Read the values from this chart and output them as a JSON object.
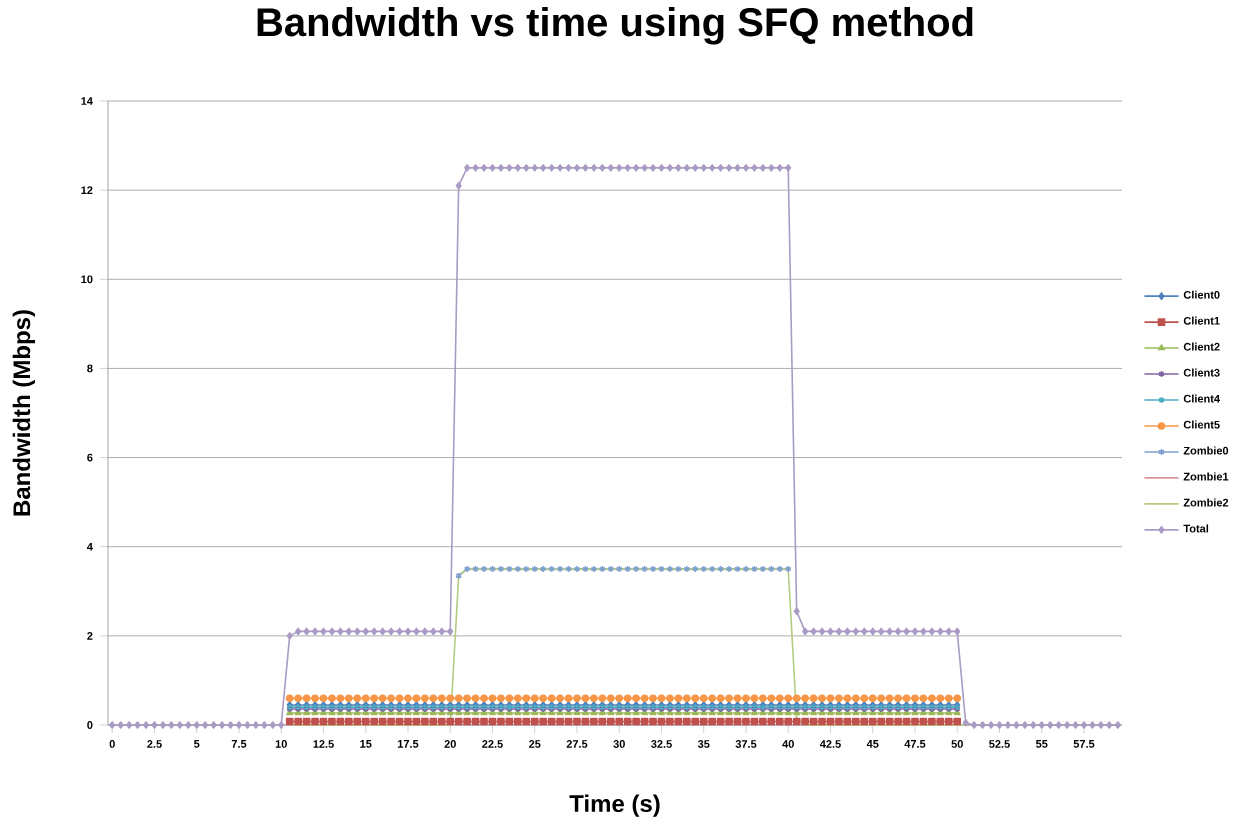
{
  "chart_data": {
    "type": "line",
    "title": "Bandwidth vs time using SFQ method",
    "xlabel": "Time (s)",
    "ylabel": "Bandwidth (Mbps)",
    "categories": [
      "0",
      null,
      null,
      null,
      null,
      "2.5",
      null,
      null,
      null,
      null,
      "5",
      null,
      null,
      null,
      null,
      "7.5",
      null,
      null,
      null,
      null,
      "10",
      null,
      null,
      null,
      null,
      "12.5",
      null,
      null,
      null,
      null,
      "15",
      null,
      null,
      null,
      null,
      "17.5",
      null,
      null,
      null,
      null,
      "20",
      null,
      null,
      null,
      null,
      "22.5",
      null,
      null,
      null,
      null,
      "25",
      null,
      null,
      null,
      null,
      "27.5",
      null,
      null,
      null,
      null,
      "30",
      null,
      null,
      null,
      null,
      "32.5",
      null,
      null,
      null,
      null,
      "35",
      null,
      null,
      null,
      null,
      "37.5",
      null,
      null,
      null,
      null,
      "40",
      null,
      null,
      null,
      null,
      "42.5",
      null,
      null,
      null,
      null,
      "45",
      null,
      null,
      null,
      null,
      "47.5",
      null,
      null,
      null,
      null,
      "50",
      null,
      null,
      null,
      null,
      "52.5",
      null,
      null,
      null,
      null,
      "55",
      null,
      null,
      null,
      null,
      "57.5",
      null,
      null,
      null,
      null
    ],
    "ylim": [
      0,
      14
    ],
    "yticks": [
      0,
      2,
      4,
      6,
      8,
      10,
      12,
      14
    ],
    "grid": "y",
    "legend": "right",
    "line_style": "solid",
    "series": [
      {
        "name": "Client0",
        "color": "#4f81bd",
        "marker": "diamond",
        "values": [
          null,
          null,
          null,
          null,
          null,
          null,
          null,
          null,
          null,
          null,
          null,
          null,
          null,
          null,
          null,
          null,
          null,
          null,
          null,
          null,
          null,
          0.45,
          0.45,
          0.45,
          0.45,
          0.45,
          0.45,
          0.45,
          0.45,
          0.45,
          0.45,
          0.45,
          0.45,
          0.45,
          0.45,
          0.45,
          0.45,
          0.45,
          0.45,
          0.45,
          0.45,
          0.45,
          0.45,
          0.45,
          0.45,
          0.45,
          0.45,
          0.45,
          0.45,
          0.45,
          0.45,
          0.45,
          0.45,
          0.45,
          0.45,
          0.45,
          0.45,
          0.45,
          0.45,
          0.45,
          0.45,
          0.45,
          0.45,
          0.45,
          0.45,
          0.45,
          0.45,
          0.45,
          0.45,
          0.45,
          0.45,
          0.45,
          0.45,
          0.45,
          0.45,
          0.45,
          0.45,
          0.45,
          0.45,
          0.45,
          0.45,
          0.45,
          0.45,
          0.45,
          0.45,
          0.45,
          0.45,
          0.45,
          0.45,
          0.45,
          0.45,
          0.45,
          0.45,
          0.45,
          0.45,
          0.45,
          0.45,
          0.45,
          0.45,
          0.45,
          0.45,
          null,
          null,
          null,
          null,
          null,
          null,
          null,
          null,
          null,
          null,
          null,
          null,
          null,
          null,
          null,
          null,
          null,
          null,
          null
        ]
      },
      {
        "name": "Client1",
        "color": "#c0504d",
        "marker": "square",
        "values": [
          null,
          null,
          null,
          null,
          null,
          null,
          null,
          null,
          null,
          null,
          null,
          null,
          null,
          null,
          null,
          null,
          null,
          null,
          null,
          null,
          null,
          0.08,
          0.08,
          0.08,
          0.08,
          0.08,
          0.08,
          0.08,
          0.08,
          0.08,
          0.08,
          0.08,
          0.08,
          0.08,
          0.08,
          0.08,
          0.08,
          0.08,
          0.08,
          0.08,
          0.08,
          0.08,
          0.08,
          0.08,
          0.08,
          0.08,
          0.08,
          0.08,
          0.08,
          0.08,
          0.08,
          0.08,
          0.08,
          0.08,
          0.08,
          0.08,
          0.08,
          0.08,
          0.08,
          0.08,
          0.08,
          0.08,
          0.08,
          0.08,
          0.08,
          0.08,
          0.08,
          0.08,
          0.08,
          0.08,
          0.08,
          0.08,
          0.08,
          0.08,
          0.08,
          0.08,
          0.08,
          0.08,
          0.08,
          0.08,
          0.08,
          0.08,
          0.08,
          0.08,
          0.08,
          0.08,
          0.08,
          0.08,
          0.08,
          0.08,
          0.08,
          0.08,
          0.08,
          0.08,
          0.08,
          0.08,
          0.08,
          0.08,
          0.08,
          0.08,
          0.08,
          null,
          null,
          null,
          null,
          null,
          null,
          null,
          null,
          null,
          null,
          null,
          null,
          null,
          null,
          null,
          null,
          null,
          null,
          null
        ]
      },
      {
        "name": "Client2",
        "color": "#9bbb59",
        "marker": "triangle",
        "values": [
          null,
          null,
          null,
          null,
          null,
          null,
          null,
          null,
          null,
          null,
          null,
          null,
          null,
          null,
          null,
          null,
          null,
          null,
          null,
          null,
          null,
          0.27,
          0.27,
          0.27,
          0.27,
          0.27,
          0.27,
          0.27,
          0.27,
          0.27,
          0.27,
          0.27,
          0.27,
          0.27,
          0.27,
          0.27,
          0.27,
          0.27,
          0.27,
          0.27,
          0.27,
          0.27,
          0.27,
          0.27,
          0.27,
          0.27,
          0.27,
          0.27,
          0.27,
          0.27,
          0.27,
          0.27,
          0.27,
          0.27,
          0.27,
          0.27,
          0.27,
          0.27,
          0.27,
          0.27,
          0.27,
          0.27,
          0.27,
          0.27,
          0.27,
          0.27,
          0.27,
          0.27,
          0.27,
          0.27,
          0.27,
          0.27,
          0.27,
          0.27,
          0.27,
          0.27,
          0.27,
          0.27,
          0.27,
          0.27,
          0.27,
          0.27,
          0.27,
          0.27,
          0.27,
          0.27,
          0.27,
          0.27,
          0.27,
          0.27,
          0.27,
          0.27,
          0.27,
          0.27,
          0.27,
          0.27,
          0.27,
          0.27,
          0.27,
          0.27,
          0.27,
          null,
          null,
          null,
          null,
          null,
          null,
          null,
          null,
          null,
          null,
          null,
          null,
          null,
          null,
          null,
          null,
          null,
          null,
          null
        ]
      },
      {
        "name": "Client3",
        "color": "#8064a2",
        "marker": "cross",
        "values": [
          null,
          null,
          null,
          null,
          null,
          null,
          null,
          null,
          null,
          null,
          null,
          null,
          null,
          null,
          null,
          null,
          null,
          null,
          null,
          null,
          null,
          0.36,
          0.36,
          0.36,
          0.36,
          0.36,
          0.36,
          0.36,
          0.36,
          0.36,
          0.36,
          0.36,
          0.36,
          0.36,
          0.36,
          0.36,
          0.36,
          0.36,
          0.36,
          0.36,
          0.36,
          0.36,
          0.36,
          0.36,
          0.36,
          0.36,
          0.36,
          0.36,
          0.36,
          0.36,
          0.36,
          0.36,
          0.36,
          0.36,
          0.36,
          0.36,
          0.36,
          0.36,
          0.36,
          0.36,
          0.36,
          0.36,
          0.36,
          0.36,
          0.36,
          0.36,
          0.36,
          0.36,
          0.36,
          0.36,
          0.36,
          0.36,
          0.36,
          0.36,
          0.36,
          0.36,
          0.36,
          0.36,
          0.36,
          0.36,
          0.36,
          0.36,
          0.36,
          0.36,
          0.36,
          0.36,
          0.36,
          0.36,
          0.36,
          0.36,
          0.36,
          0.36,
          0.36,
          0.36,
          0.36,
          0.36,
          0.36,
          0.36,
          0.36,
          0.36,
          0.36,
          null,
          null,
          null,
          null,
          null,
          null,
          null,
          null,
          null,
          null,
          null,
          null,
          null,
          null,
          null,
          null,
          null,
          null,
          null
        ]
      },
      {
        "name": "Client4",
        "color": "#4bacc6",
        "marker": "cross",
        "values": [
          null,
          null,
          null,
          null,
          null,
          null,
          null,
          null,
          null,
          null,
          null,
          null,
          null,
          null,
          null,
          null,
          null,
          null,
          null,
          null,
          null,
          0.4,
          0.4,
          0.4,
          0.4,
          0.4,
          0.4,
          0.4,
          0.4,
          0.4,
          0.4,
          0.4,
          0.4,
          0.4,
          0.4,
          0.4,
          0.4,
          0.4,
          0.4,
          0.4,
          0.4,
          0.4,
          0.4,
          0.4,
          0.4,
          0.4,
          0.4,
          0.4,
          0.4,
          0.4,
          0.4,
          0.4,
          0.4,
          0.4,
          0.4,
          0.4,
          0.4,
          0.4,
          0.4,
          0.4,
          0.4,
          0.4,
          0.4,
          0.4,
          0.4,
          0.4,
          0.4,
          0.4,
          0.4,
          0.4,
          0.4,
          0.4,
          0.4,
          0.4,
          0.4,
          0.4,
          0.4,
          0.4,
          0.4,
          0.4,
          0.4,
          0.4,
          0.4,
          0.4,
          0.4,
          0.4,
          0.4,
          0.4,
          0.4,
          0.4,
          0.4,
          0.4,
          0.4,
          0.4,
          0.4,
          0.4,
          0.4,
          0.4,
          0.4,
          0.4,
          0.4,
          null,
          null,
          null,
          null,
          null,
          null,
          null,
          null,
          null,
          null,
          null,
          null,
          null,
          null,
          null,
          null,
          null,
          null,
          null
        ]
      },
      {
        "name": "Client5",
        "color": "#f79646",
        "marker": "circle",
        "values": [
          null,
          null,
          null,
          null,
          null,
          null,
          null,
          null,
          null,
          null,
          null,
          null,
          null,
          null,
          null,
          null,
          null,
          null,
          null,
          null,
          null,
          0.6,
          0.6,
          0.6,
          0.6,
          0.6,
          0.6,
          0.6,
          0.6,
          0.6,
          0.6,
          0.6,
          0.6,
          0.6,
          0.6,
          0.6,
          0.6,
          0.6,
          0.6,
          0.6,
          0.6,
          0.6,
          0.6,
          0.6,
          0.6,
          0.6,
          0.6,
          0.6,
          0.6,
          0.6,
          0.6,
          0.6,
          0.6,
          0.6,
          0.6,
          0.6,
          0.6,
          0.6,
          0.6,
          0.6,
          0.6,
          0.6,
          0.6,
          0.6,
          0.6,
          0.6,
          0.6,
          0.6,
          0.6,
          0.6,
          0.6,
          0.6,
          0.6,
          0.6,
          0.6,
          0.6,
          0.6,
          0.6,
          0.6,
          0.6,
          0.6,
          0.6,
          0.6,
          0.6,
          0.6,
          0.6,
          0.6,
          0.6,
          0.6,
          0.6,
          0.6,
          0.6,
          0.6,
          0.6,
          0.6,
          0.6,
          0.6,
          0.6,
          0.6,
          0.6,
          0.6,
          null,
          null,
          null,
          null,
          null,
          null,
          null,
          null,
          null,
          null,
          null,
          null,
          null,
          null,
          null,
          null,
          null,
          null,
          null
        ]
      },
      {
        "name": "Zombie0",
        "color": "#7f9fcf",
        "marker": "cross",
        "values": [
          null,
          null,
          null,
          null,
          null,
          null,
          null,
          null,
          null,
          null,
          null,
          null,
          null,
          null,
          null,
          null,
          null,
          null,
          null,
          null,
          null,
          null,
          null,
          null,
          null,
          null,
          null,
          null,
          null,
          null,
          null,
          null,
          null,
          null,
          null,
          null,
          null,
          null,
          null,
          null,
          null,
          3.35,
          3.5,
          3.5,
          3.5,
          3.5,
          3.5,
          3.5,
          3.5,
          3.5,
          3.5,
          3.5,
          3.5,
          3.5,
          3.5,
          3.5,
          3.5,
          3.5,
          3.5,
          3.5,
          3.5,
          3.5,
          3.5,
          3.5,
          3.5,
          3.5,
          3.5,
          3.5,
          3.5,
          3.5,
          3.5,
          3.5,
          3.5,
          3.5,
          3.5,
          3.5,
          3.5,
          3.5,
          3.5,
          3.5,
          3.5,
          null,
          null,
          null,
          null,
          null,
          null,
          null,
          null,
          null,
          null,
          null,
          null,
          null,
          null,
          null,
          null,
          null,
          null,
          null,
          null,
          null,
          null,
          null,
          null,
          null,
          null,
          null,
          null,
          null,
          null,
          null,
          null,
          null,
          null,
          null,
          null,
          null,
          null,
          null
        ]
      },
      {
        "name": "Zombie1",
        "color": "#d99694",
        "values": [
          null,
          null,
          null,
          null,
          null,
          null,
          null,
          null,
          null,
          null,
          null,
          null,
          null,
          null,
          null,
          null,
          null,
          null,
          null,
          null,
          null,
          null,
          null,
          null,
          null,
          null,
          null,
          null,
          null,
          null,
          null,
          null,
          null,
          null,
          null,
          null,
          null,
          null,
          null,
          null,
          null,
          null,
          null,
          null,
          null,
          null,
          null,
          null,
          null,
          null,
          null,
          null,
          null,
          null,
          null,
          null,
          null,
          null,
          null,
          null,
          null,
          null,
          null,
          null,
          null,
          null,
          null,
          null,
          null,
          null,
          null,
          null,
          null,
          null,
          null,
          null,
          null,
          null,
          null,
          null,
          null,
          null,
          null,
          null,
          null,
          null,
          null,
          null,
          null,
          null,
          null,
          null,
          null,
          null,
          null,
          null,
          null,
          null,
          null,
          null,
          null,
          null,
          null,
          null,
          null,
          null,
          null,
          null,
          null,
          null,
          null,
          null,
          null,
          null,
          null,
          null,
          null,
          null,
          null,
          null
        ]
      },
      {
        "name": "Zombie2",
        "color": "#b3cc82",
        "values": [
          null,
          null,
          null,
          null,
          null,
          null,
          null,
          null,
          null,
          null,
          null,
          null,
          null,
          null,
          null,
          null,
          null,
          null,
          null,
          null,
          null,
          0,
          0,
          0,
          0,
          0,
          0,
          0,
          0,
          0,
          0,
          0,
          0,
          0,
          0,
          0,
          0,
          0,
          0,
          0,
          0,
          3.35,
          3.5,
          3.5,
          3.5,
          3.5,
          3.5,
          3.5,
          3.5,
          3.5,
          3.5,
          3.5,
          3.5,
          3.5,
          3.5,
          3.5,
          3.5,
          3.5,
          3.5,
          3.5,
          3.5,
          3.5,
          3.5,
          3.5,
          3.5,
          3.5,
          3.5,
          3.5,
          3.5,
          3.5,
          3.5,
          3.5,
          3.5,
          3.5,
          3.5,
          3.5,
          3.5,
          3.5,
          3.5,
          3.5,
          3.5,
          0.15,
          0,
          0,
          0,
          0,
          0,
          0,
          0,
          0,
          0,
          0,
          0,
          0,
          0,
          0,
          0,
          0,
          0,
          0,
          0,
          0,
          null,
          null,
          null,
          null,
          null,
          null,
          null,
          null,
          null,
          null,
          null,
          null,
          null,
          null,
          null,
          null,
          null,
          null
        ]
      },
      {
        "name": "Total",
        "color": "#a99bc4",
        "marker": "diamond",
        "values": [
          0,
          0,
          0,
          0,
          0,
          0,
          0,
          0,
          0,
          0,
          0,
          0,
          0,
          0,
          0,
          0,
          0,
          0,
          0,
          0,
          0,
          2.0,
          2.1,
          2.1,
          2.1,
          2.1,
          2.1,
          2.1,
          2.1,
          2.1,
          2.1,
          2.1,
          2.1,
          2.1,
          2.1,
          2.1,
          2.1,
          2.1,
          2.1,
          2.1,
          2.1,
          12.1,
          12.5,
          12.5,
          12.5,
          12.5,
          12.5,
          12.5,
          12.5,
          12.5,
          12.5,
          12.5,
          12.5,
          12.5,
          12.5,
          12.5,
          12.5,
          12.5,
          12.5,
          12.5,
          12.5,
          12.5,
          12.5,
          12.5,
          12.5,
          12.5,
          12.5,
          12.5,
          12.5,
          12.5,
          12.5,
          12.5,
          12.5,
          12.5,
          12.5,
          12.5,
          12.5,
          12.5,
          12.5,
          12.5,
          12.5,
          2.55,
          2.1,
          2.1,
          2.1,
          2.1,
          2.1,
          2.1,
          2.1,
          2.1,
          2.1,
          2.1,
          2.1,
          2.1,
          2.1,
          2.1,
          2.1,
          2.1,
          2.1,
          2.1,
          2.1,
          0.05,
          0,
          0,
          0,
          0,
          0,
          0,
          0,
          0,
          0,
          0,
          0,
          0,
          0,
          0,
          0,
          0,
          0,
          0
        ]
      }
    ]
  }
}
